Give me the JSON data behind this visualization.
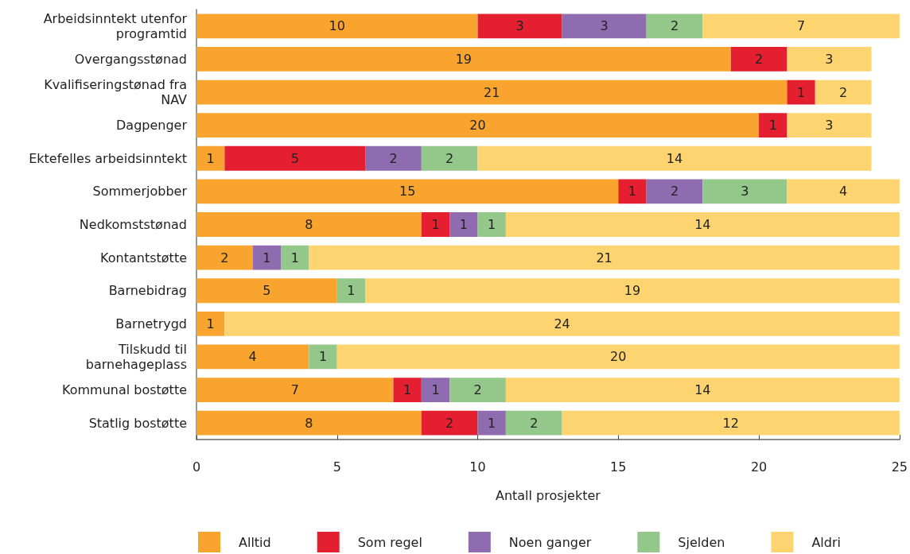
{
  "chart_data": {
    "type": "bar",
    "orientation": "horizontal",
    "stacked": true,
    "xlabel": "Antall prosjekter",
    "categories": [
      "Arbeidsinntekt utenfor\nprogramtid",
      "Overgangsstønad",
      "Kvalifiseringstønad fra\nNAV",
      "Dagpenger",
      "Ektefelles arbeidsinntekt",
      "Sommerjobber",
      "Nedkomststønad",
      "Kontantstøtte",
      "Barnebidrag",
      "Barnetrygd",
      "Tilskudd til\nbarnehageplass",
      "Kommunal bostøtte",
      "Statlig bostøtte"
    ],
    "series": [
      {
        "name": "Alltid",
        "color": "#f8a42e",
        "values": [
          10,
          19,
          21,
          20,
          1,
          15,
          8,
          2,
          5,
          1,
          4,
          7,
          8
        ]
      },
      {
        "name": "Som regel",
        "color": "#e31f30",
        "values": [
          3,
          2,
          1,
          1,
          5,
          1,
          1,
          null,
          null,
          null,
          null,
          1,
          2
        ]
      },
      {
        "name": "Noen ganger",
        "color": "#8f6caf",
        "values": [
          3,
          null,
          null,
          null,
          2,
          2,
          1,
          1,
          null,
          null,
          null,
          1,
          1
        ]
      },
      {
        "name": "Sjelden",
        "color": "#93c88a",
        "values": [
          2,
          null,
          null,
          null,
          2,
          3,
          1,
          1,
          1,
          null,
          1,
          2,
          2
        ]
      },
      {
        "name": "Aldri",
        "color": "#fdd470",
        "values": [
          7,
          3,
          2,
          3,
          14,
          4,
          14,
          21,
          19,
          24,
          20,
          14,
          12
        ]
      }
    ],
    "xlim": [
      0,
      25
    ],
    "xticks": [
      0,
      5,
      10,
      15,
      20,
      25
    ],
    "grid": false,
    "legend": "bottom",
    "data_labels": true
  }
}
